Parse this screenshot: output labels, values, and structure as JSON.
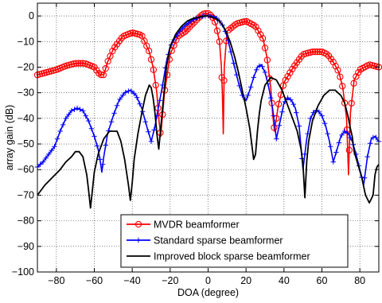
{
  "chart_data": {
    "type": "line",
    "xlabel": "DOA (degree)",
    "ylabel": "array gain (dB)",
    "xlim": [
      -90,
      90
    ],
    "ylim": [
      -100,
      5
    ],
    "xticks": [
      -80,
      -60,
      -40,
      -20,
      0,
      20,
      40,
      60,
      80
    ],
    "yticks": [
      0,
      -10,
      -20,
      -30,
      -40,
      -50,
      -60,
      -70,
      -80,
      -90,
      -100
    ],
    "grid": true,
    "legend_position": "bottom-center",
    "series": [
      {
        "name": "MVDR beamformer",
        "color": "#ff0000",
        "marker": "circle",
        "x": [
          -90,
          -85,
          -80,
          -75,
          -70,
          -65,
          -60,
          -57,
          -55,
          -53,
          -50,
          -45,
          -40,
          -35,
          -31,
          -29,
          -27,
          -26,
          -25,
          -23,
          -20,
          -16,
          -12,
          -8,
          -4,
          -2,
          0,
          2,
          4,
          6,
          7,
          7.5,
          8,
          8.5,
          10,
          15,
          20,
          25,
          29,
          31,
          33,
          34,
          35,
          37,
          40,
          45,
          50,
          55,
          60,
          63,
          66,
          69,
          71,
          72,
          73,
          74,
          75,
          77,
          80,
          85,
          90
        ],
        "y": [
          -23,
          -22,
          -21,
          -19.5,
          -18.5,
          -18.5,
          -20,
          -23,
          -23,
          -18,
          -13,
          -8,
          -6.5,
          -7.5,
          -14,
          -20,
          -30,
          -40,
          -47,
          -30,
          -15,
          -8,
          -6,
          -3,
          0,
          1,
          1,
          0,
          -3,
          -10,
          -20,
          -30,
          -46,
          -20,
          -6,
          -3,
          -2,
          -4,
          -9,
          -16,
          -28,
          -38,
          -45,
          -35,
          -26,
          -20,
          -15,
          -14,
          -14,
          -15,
          -18,
          -22,
          -28,
          -34,
          -40,
          -62,
          -38,
          -25,
          -21,
          -19,
          -20
        ]
      },
      {
        "name": "Standard sparse beamformer",
        "color": "#0000ff",
        "marker": "plus",
        "x": [
          -90,
          -87,
          -84,
          -81,
          -78,
          -75,
          -72,
          -69,
          -66,
          -63,
          -60,
          -58,
          -57,
          -56,
          -55,
          -53,
          -50,
          -47,
          -44,
          -41,
          -38,
          -35,
          -32,
          -30,
          -28,
          -26,
          -24,
          -22,
          -20,
          -17,
          -14,
          -11,
          -8,
          -5,
          -2,
          0,
          2,
          4,
          6,
          8,
          10,
          12,
          14,
          16,
          18,
          20,
          22,
          24,
          26,
          28,
          30,
          32,
          34,
          36,
          38,
          40,
          42,
          44,
          46,
          48,
          50,
          52,
          54,
          56,
          58,
          60,
          62,
          64,
          66,
          68,
          70,
          72,
          74,
          76,
          78,
          80,
          82,
          84,
          86,
          88,
          90
        ],
        "y": [
          -59,
          -57,
          -54,
          -51,
          -45,
          -40,
          -37,
          -36,
          -37,
          -41,
          -47,
          -52,
          -56,
          -61,
          -55,
          -46,
          -39,
          -33,
          -30,
          -29,
          -31,
          -36,
          -44,
          -49,
          -43,
          -35,
          -27,
          -18,
          -12,
          -8,
          -5,
          -3,
          -1.5,
          -0.5,
          0,
          0,
          0,
          -0.5,
          -2,
          -4,
          -8,
          -14,
          -20,
          -26,
          -31,
          -33,
          -29,
          -24,
          -20,
          -19,
          -22,
          -28,
          -36,
          -48,
          -41,
          -34,
          -32,
          -33,
          -36,
          -43,
          -60,
          -48,
          -40,
          -37,
          -37,
          -39,
          -43,
          -49,
          -57,
          -52,
          -47,
          -45,
          -46,
          -49,
          -54,
          -60,
          -66,
          -55,
          -48,
          -47,
          -49
        ]
      },
      {
        "name": "Improved block sparse beamformer",
        "color": "#000000",
        "marker": "none",
        "x": [
          -90,
          -86,
          -82,
          -78,
          -75,
          -72,
          -70,
          -68,
          -66,
          -64,
          -63,
          -62,
          -61,
          -60,
          -58,
          -55,
          -52,
          -48,
          -46,
          -44,
          -42,
          -41,
          -40,
          -39,
          -37,
          -35,
          -33,
          -31,
          -30,
          -29,
          -28,
          -27,
          -26,
          -25,
          -24,
          -23,
          -22,
          -20,
          -17,
          -14,
          -11,
          -8,
          -5,
          -2,
          0,
          2,
          4,
          6,
          8,
          10,
          12,
          14,
          16,
          18,
          20,
          22,
          23,
          24,
          25,
          26,
          27,
          28,
          30,
          33,
          36,
          39,
          42,
          45,
          47,
          49,
          50,
          51,
          52,
          53,
          55,
          58,
          61,
          64,
          67,
          70,
          72,
          73,
          74,
          75,
          76,
          77,
          79,
          81,
          83,
          85,
          87,
          88,
          89,
          90
        ],
        "y": [
          -70,
          -66,
          -63,
          -60,
          -57,
          -55,
          -53,
          -53,
          -55,
          -62,
          -68,
          -75,
          -68,
          -61,
          -54,
          -48,
          -45,
          -45,
          -49,
          -56,
          -66,
          -72,
          -65,
          -56,
          -46,
          -38,
          -31,
          -27,
          -28,
          -32,
          -38,
          -46,
          -52,
          -44,
          -36,
          -28,
          -20,
          -12,
          -7,
          -4,
          -2,
          -1,
          -0.5,
          0,
          0,
          -0.5,
          -1,
          -2,
          -4,
          -7,
          -11,
          -16,
          -22,
          -29,
          -36,
          -44,
          -50,
          -56,
          -54,
          -45,
          -38,
          -33,
          -27,
          -24,
          -25,
          -29,
          -35,
          -41,
          -45,
          -52,
          -58,
          -71,
          -57,
          -49,
          -41,
          -35,
          -31,
          -29,
          -29,
          -31,
          -34,
          -37,
          -40,
          -44,
          -47,
          -53,
          -58,
          -63,
          -70,
          -73,
          -70,
          -62,
          -59,
          -58
        ]
      }
    ]
  }
}
